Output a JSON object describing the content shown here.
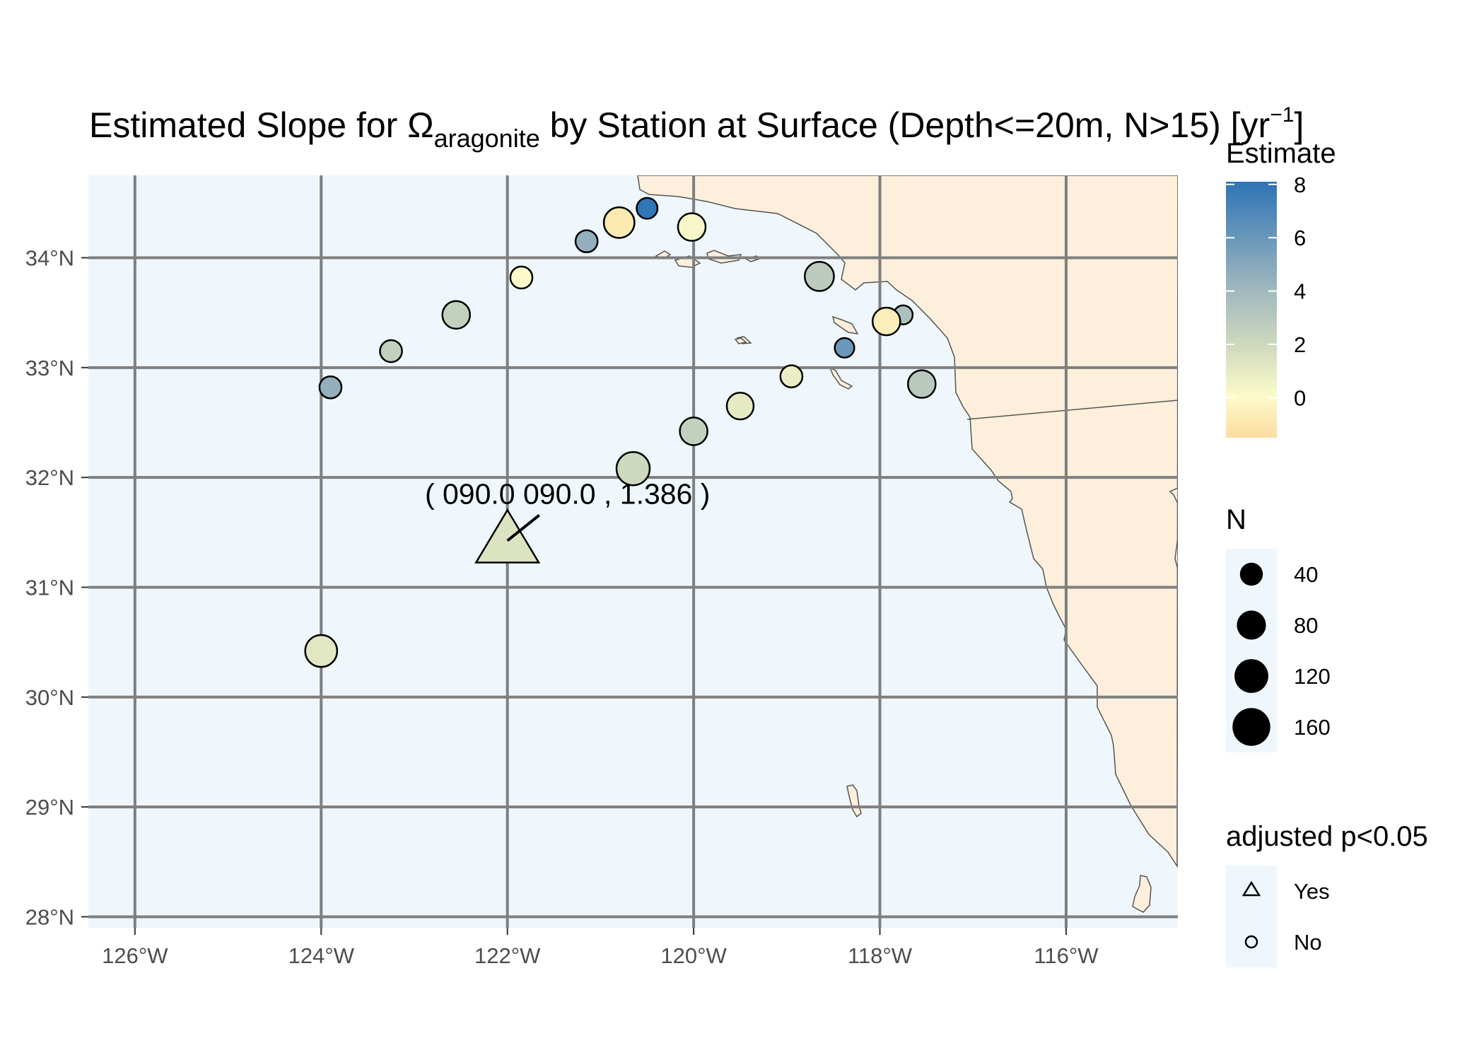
{
  "title": {
    "prefix": "Estimated Slope for Ω",
    "subscript": "aragonite",
    "middle": " by Station at Surface (Depth<=20m, N>15) [yr",
    "superscript": "−1",
    "suffix": "]"
  },
  "colors": {
    "ocean": "#eff7fd",
    "land": "#fdefdb",
    "coast": "#555555",
    "grid": "#7f7f7f",
    "gradient_high": "#2e74b6",
    "gradient_mid_high": "#9bb4be",
    "gradient_mid": "#cfd9bd",
    "gradient_mid_low": "#fcfbcb",
    "gradient_low": "#fddc9e"
  },
  "axes": {
    "lon_range": [
      -126.5,
      -114.8
    ],
    "lat_range": [
      27.9,
      34.75
    ],
    "x_ticks": [
      {
        "value": -126,
        "label": "126°W"
      },
      {
        "value": -124,
        "label": "124°W"
      },
      {
        "value": -122,
        "label": "122°W"
      },
      {
        "value": -120,
        "label": "120°W"
      },
      {
        "value": -118,
        "label": "118°W"
      },
      {
        "value": -116,
        "label": "116°W"
      }
    ],
    "y_ticks": [
      {
        "value": 34,
        "label": "34°N"
      },
      {
        "value": 33,
        "label": "33°N"
      },
      {
        "value": 32,
        "label": "32°N"
      },
      {
        "value": 31,
        "label": "31°N"
      },
      {
        "value": 30,
        "label": "30°N"
      },
      {
        "value": 29,
        "label": "29°N"
      },
      {
        "value": 28,
        "label": "28°N"
      }
    ]
  },
  "stations": [
    {
      "lon": -120.5,
      "lat": 34.45,
      "estimate": 8.0,
      "n": 25,
      "significant": false
    },
    {
      "lon": -120.8,
      "lat": 34.32,
      "estimate": -0.8,
      "n": 80,
      "significant": false
    },
    {
      "lon": -121.15,
      "lat": 34.15,
      "estimate": 4.5,
      "n": 30,
      "significant": false
    },
    {
      "lon": -120.02,
      "lat": 34.28,
      "estimate": 0.3,
      "n": 60,
      "significant": false
    },
    {
      "lon": -121.85,
      "lat": 33.82,
      "estimate": 0.0,
      "n": 30,
      "significant": false
    },
    {
      "lon": -122.55,
      "lat": 33.48,
      "estimate": 2.5,
      "n": 60,
      "significant": false
    },
    {
      "lon": -123.25,
      "lat": 33.15,
      "estimate": 2.5,
      "n": 30,
      "significant": false
    },
    {
      "lon": -123.9,
      "lat": 32.82,
      "estimate": 4.5,
      "n": 30,
      "significant": false
    },
    {
      "lon": -118.65,
      "lat": 33.83,
      "estimate": 2.8,
      "n": 70,
      "significant": false
    },
    {
      "lon": -117.75,
      "lat": 33.48,
      "estimate": 3.5,
      "n": 18,
      "significant": false
    },
    {
      "lon": -117.93,
      "lat": 33.42,
      "estimate": -0.6,
      "n": 60,
      "significant": false
    },
    {
      "lon": -118.38,
      "lat": 33.18,
      "estimate": 6.0,
      "n": 20,
      "significant": false
    },
    {
      "lon": -118.95,
      "lat": 32.92,
      "estimate": 0.8,
      "n": 30,
      "significant": false
    },
    {
      "lon": -117.55,
      "lat": 32.85,
      "estimate": 3.0,
      "n": 60,
      "significant": false
    },
    {
      "lon": -119.5,
      "lat": 32.65,
      "estimate": 1.0,
      "n": 55,
      "significant": false
    },
    {
      "lon": -120.0,
      "lat": 32.42,
      "estimate": 2.5,
      "n": 60,
      "significant": false
    },
    {
      "lon": -120.65,
      "lat": 32.08,
      "estimate": 2.0,
      "n": 100,
      "significant": false
    },
    {
      "lon": -124.0,
      "lat": 30.42,
      "estimate": 1.2,
      "n": 90,
      "significant": false
    },
    {
      "lon": -122.0,
      "lat": 31.45,
      "estimate": 1.386,
      "n": 170,
      "significant": true
    }
  ],
  "annotation": {
    "text": "( 090.0 090.0 , 1.386 )",
    "lon": -122.0,
    "lat": 31.45
  },
  "legend": {
    "estimate_title": "Estimate",
    "estimate_range": [
      -1.5,
      8.1
    ],
    "estimate_ticks": [
      {
        "value": 8,
        "label": "8"
      },
      {
        "value": 6,
        "label": "6"
      },
      {
        "value": 4,
        "label": "4"
      },
      {
        "value": 2,
        "label": "2"
      },
      {
        "value": 0,
        "label": "0"
      }
    ],
    "n_title": "N",
    "n_items": [
      {
        "value": 40,
        "label": "40"
      },
      {
        "value": 80,
        "label": "80"
      },
      {
        "value": 120,
        "label": "120"
      },
      {
        "value": 160,
        "label": "160"
      }
    ],
    "p_title": "adjusted p<0.05",
    "p_items": [
      {
        "shape": "triangle",
        "label": "Yes"
      },
      {
        "shape": "circle",
        "label": "No"
      }
    ]
  }
}
